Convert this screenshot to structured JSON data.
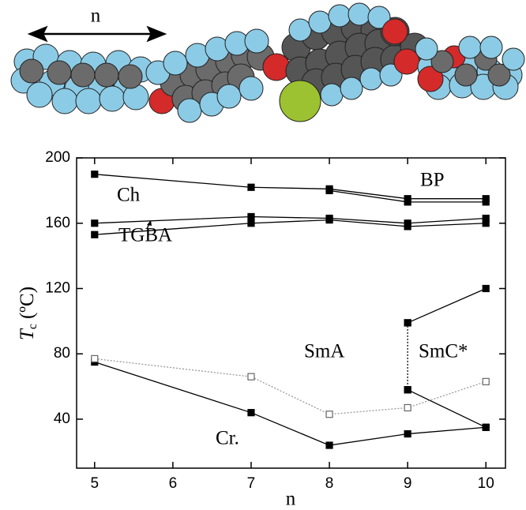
{
  "molecule_label": "n",
  "chart_data": {
    "type": "line",
    "x_label": "n",
    "y_label": "T",
    "y_label_sub": "c",
    "y_label_unit": "(ºC)",
    "xlim": [
      4.77,
      10.25
    ],
    "ylim": [
      10,
      200
    ],
    "xticks": [
      5,
      6,
      7,
      8,
      9,
      10
    ],
    "yticks": [
      40,
      80,
      120,
      160,
      200
    ],
    "annotations": [
      "BP",
      "Ch",
      "TGBA",
      "SmA",
      "SmC*",
      "Cr."
    ],
    "series": [
      {
        "x": [
          5,
          7,
          8,
          9,
          10
        ],
        "values": [
          190,
          182,
          181,
          175,
          175
        ],
        "color": "#000000",
        "style": "solid",
        "marker": "filled-square"
      },
      {
        "x": [
          8,
          9,
          10
        ],
        "values": [
          180,
          173,
          173
        ],
        "color": "#000000",
        "style": "solid",
        "marker": "filled-square"
      },
      {
        "x": [
          5,
          7,
          8,
          9,
          10
        ],
        "values": [
          160,
          164,
          163,
          160,
          163
        ],
        "color": "#000000",
        "style": "solid",
        "marker": "filled-square"
      },
      {
        "x": [
          5,
          7,
          8,
          9,
          10
        ],
        "values": [
          153,
          160,
          162,
          158,
          160
        ],
        "color": "#000000",
        "style": "solid",
        "marker": "filled-square"
      },
      {
        "x": [
          9,
          10
        ],
        "values": [
          99,
          120
        ],
        "color": "#000000",
        "style": "solid",
        "marker": "filled-square"
      },
      {
        "x": [
          9,
          9
        ],
        "values": [
          99,
          58
        ],
        "color": "#000000",
        "style": "dotted",
        "marker": "filled-square"
      },
      {
        "x": [
          9,
          10
        ],
        "values": [
          58,
          35
        ],
        "color": "#000000",
        "style": "solid",
        "marker": "filled-square"
      },
      {
        "x": [
          5,
          7,
          8,
          9,
          10
        ],
        "values": [
          75,
          44,
          24,
          31,
          35
        ],
        "color": "#000000",
        "style": "solid",
        "marker": "filled-square"
      },
      {
        "x": [
          5,
          7,
          8,
          9,
          10
        ],
        "values": [
          77,
          66,
          43,
          47,
          63
        ],
        "color": "#999999",
        "style": "dotted",
        "marker": "open-square"
      }
    ]
  }
}
